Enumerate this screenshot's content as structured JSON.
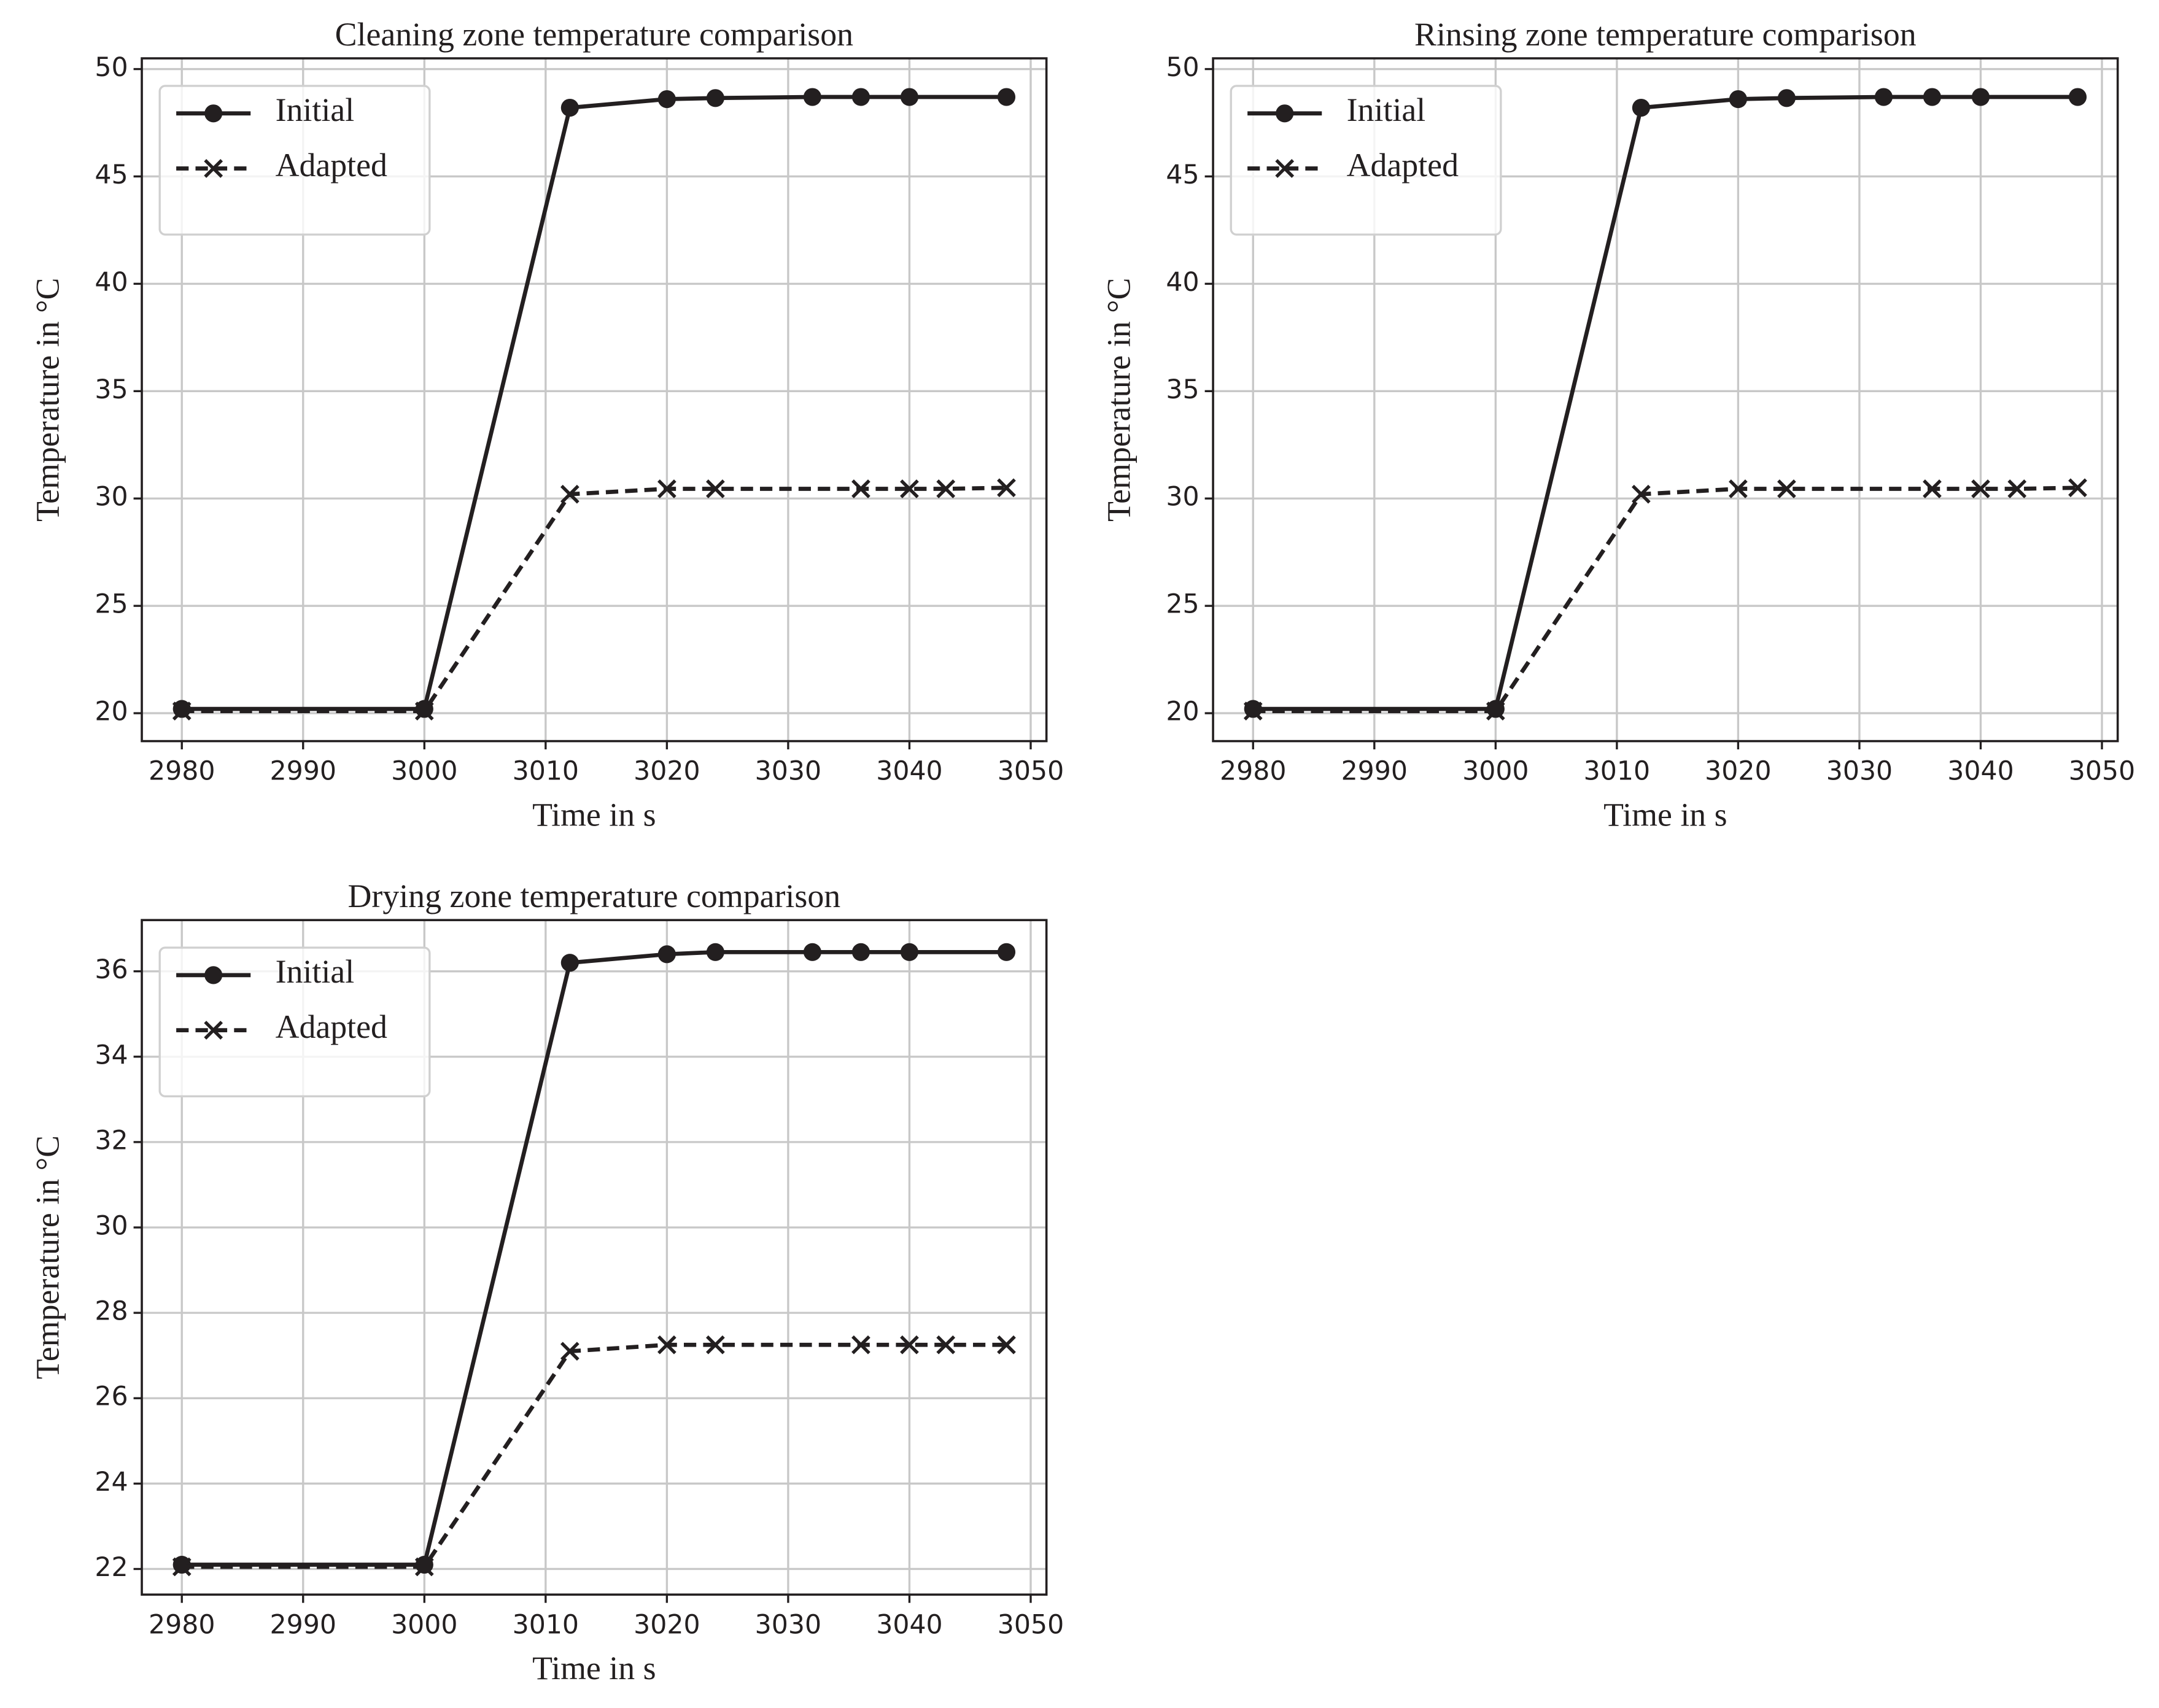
{
  "chart_data": [
    {
      "type": "line",
      "title": "Cleaning zone temperature comparison",
      "xlabel": "Time in s",
      "ylabel": "Temperature in °C",
      "xlim": [
        2976.7,
        3051.3
      ],
      "ylim": [
        18.7,
        50.5
      ],
      "xticks": [
        2980,
        2990,
        3000,
        3010,
        3020,
        3030,
        3040,
        3050
      ],
      "yticks": [
        20,
        25,
        30,
        35,
        40,
        45,
        50
      ],
      "grid": true,
      "legend": "upper left",
      "series": [
        {
          "name": "Initial",
          "color": "#231f20",
          "marker": "o",
          "linestyle": "solid",
          "x": [
            2980,
            3000,
            3012,
            3020,
            3024,
            3032,
            3036,
            3040,
            3048
          ],
          "values": [
            20.2,
            20.2,
            48.2,
            48.6,
            48.65,
            48.7,
            48.7,
            48.7,
            48.7
          ]
        },
        {
          "name": "Adapted",
          "color": "#231f20",
          "marker": "x",
          "linestyle": "dashed",
          "x": [
            2980,
            3000,
            3012,
            3020,
            3024,
            3036,
            3040,
            3043,
            3048
          ],
          "values": [
            20.1,
            20.1,
            30.2,
            30.45,
            30.45,
            30.45,
            30.45,
            30.45,
            30.5
          ]
        }
      ]
    },
    {
      "type": "line",
      "title": "Rinsing zone temperature comparison",
      "xlabel": "Time in s",
      "ylabel": "Temperature in °C",
      "xlim": [
        2976.7,
        3051.3
      ],
      "ylim": [
        18.7,
        50.5
      ],
      "xticks": [
        2980,
        2990,
        3000,
        3010,
        3020,
        3030,
        3040,
        3050
      ],
      "yticks": [
        20,
        25,
        30,
        35,
        40,
        45,
        50
      ],
      "grid": true,
      "legend": "upper left",
      "series": [
        {
          "name": "Initial",
          "color": "#231f20",
          "marker": "o",
          "linestyle": "solid",
          "x": [
            2980,
            3000,
            3012,
            3020,
            3024,
            3032,
            3036,
            3040,
            3048
          ],
          "values": [
            20.2,
            20.2,
            48.2,
            48.6,
            48.65,
            48.7,
            48.7,
            48.7,
            48.7
          ]
        },
        {
          "name": "Adapted",
          "color": "#231f20",
          "marker": "x",
          "linestyle": "dashed",
          "x": [
            2980,
            3000,
            3012,
            3020,
            3024,
            3036,
            3040,
            3043,
            3048
          ],
          "values": [
            20.1,
            20.1,
            30.2,
            30.45,
            30.45,
            30.45,
            30.45,
            30.45,
            30.5
          ]
        }
      ]
    },
    {
      "type": "line",
      "title": "Drying zone temperature comparison",
      "xlabel": "Time in s",
      "ylabel": "Temperature in °C",
      "xlim": [
        2976.7,
        3051.3
      ],
      "ylim": [
        21.4,
        37.2
      ],
      "xticks": [
        2980,
        2990,
        3000,
        3010,
        3020,
        3030,
        3040,
        3050
      ],
      "yticks": [
        22,
        24,
        26,
        28,
        30,
        32,
        34,
        36
      ],
      "grid": true,
      "legend": "upper left",
      "series": [
        {
          "name": "Initial",
          "color": "#231f20",
          "marker": "o",
          "linestyle": "solid",
          "x": [
            2980,
            3000,
            3012,
            3020,
            3024,
            3032,
            3036,
            3040,
            3048
          ],
          "values": [
            22.1,
            22.1,
            36.2,
            36.4,
            36.45,
            36.45,
            36.45,
            36.45,
            36.45
          ]
        },
        {
          "name": "Adapted",
          "color": "#231f20",
          "marker": "x",
          "linestyle": "dashed",
          "x": [
            2980,
            3000,
            3012,
            3020,
            3024,
            3036,
            3040,
            3043,
            3048
          ],
          "values": [
            22.05,
            22.05,
            27.1,
            27.25,
            27.25,
            27.25,
            27.25,
            27.25,
            27.25
          ]
        }
      ]
    }
  ]
}
